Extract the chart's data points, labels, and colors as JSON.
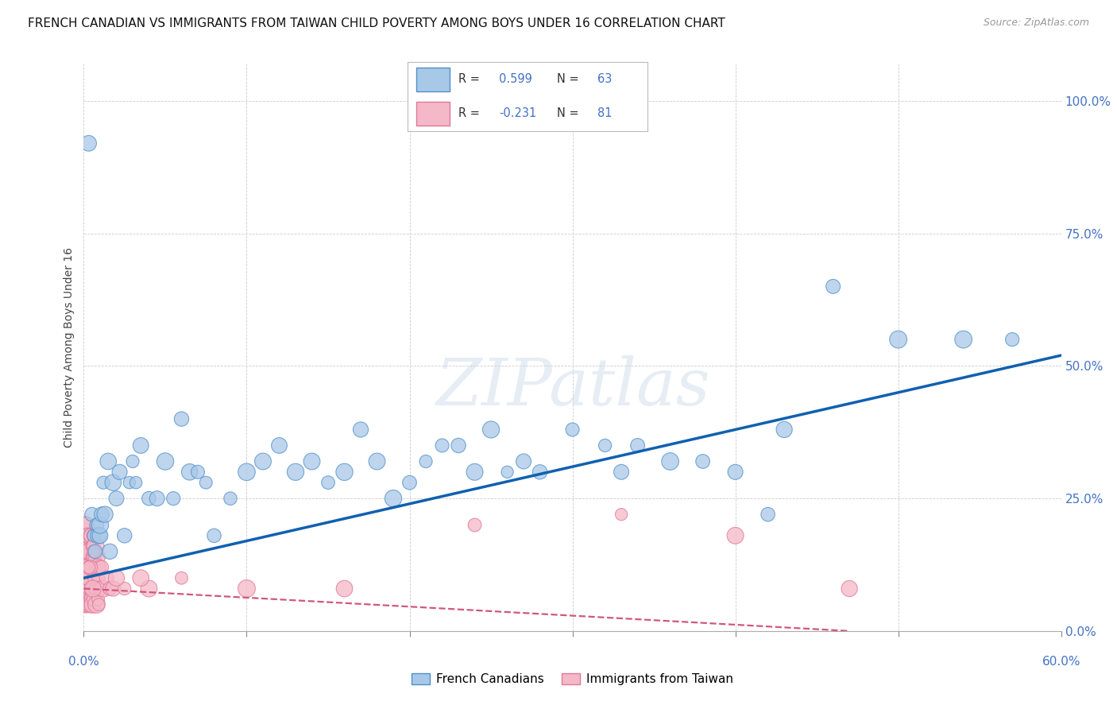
{
  "title": "FRENCH CANADIAN VS IMMIGRANTS FROM TAIWAN CHILD POVERTY AMONG BOYS UNDER 16 CORRELATION CHART",
  "source": "Source: ZipAtlas.com",
  "ylabel": "Child Poverty Among Boys Under 16",
  "ytick_values": [
    0,
    25,
    50,
    75,
    100
  ],
  "xlim": [
    0,
    60
  ],
  "ylim": [
    0,
    107
  ],
  "blue_series": {
    "name": "French Canadians",
    "R_label": "0.599",
    "N_label": "63",
    "face_color": "#a8c8e8",
    "edge_color": "#5090c8",
    "line_color": "#1060b0",
    "x": [
      0.3,
      0.5,
      0.6,
      0.7,
      0.8,
      0.9,
      1.0,
      1.0,
      1.1,
      1.2,
      1.3,
      1.5,
      1.6,
      1.8,
      2.0,
      2.2,
      2.5,
      2.8,
      3.0,
      3.2,
      3.5,
      4.0,
      4.5,
      5.0,
      5.5,
      6.0,
      6.5,
      7.0,
      7.5,
      8.0,
      9.0,
      10.0,
      11.0,
      12.0,
      13.0,
      14.0,
      15.0,
      16.0,
      17.0,
      18.0,
      19.0,
      20.0,
      21.0,
      22.0,
      23.0,
      24.0,
      25.0,
      26.0,
      27.0,
      28.0,
      30.0,
      32.0,
      34.0,
      36.0,
      38.0,
      40.0,
      43.0,
      46.0,
      50.0,
      54.0,
      57.0,
      33.0,
      42.0
    ],
    "y": [
      92,
      22,
      18,
      15,
      20,
      18,
      18,
      20,
      22,
      28,
      22,
      32,
      15,
      28,
      25,
      30,
      18,
      28,
      32,
      28,
      35,
      25,
      25,
      32,
      25,
      40,
      30,
      30,
      28,
      18,
      25,
      30,
      32,
      35,
      30,
      32,
      28,
      30,
      38,
      32,
      25,
      28,
      32,
      35,
      35,
      30,
      38,
      30,
      32,
      30,
      38,
      35,
      35,
      32,
      32,
      30,
      38,
      65,
      55,
      55,
      55,
      30,
      22
    ],
    "trend_x": [
      0,
      60
    ],
    "trend_y": [
      10,
      52
    ]
  },
  "pink_series": {
    "name": "Immigrants from Taiwan",
    "R_label": "-0.231",
    "N_label": "81",
    "face_color": "#f4b8c8",
    "edge_color": "#e07898",
    "line_color": "#d05878",
    "x": [
      0.02,
      0.03,
      0.04,
      0.05,
      0.05,
      0.06,
      0.07,
      0.07,
      0.08,
      0.08,
      0.09,
      0.09,
      0.1,
      0.1,
      0.1,
      0.12,
      0.12,
      0.13,
      0.15,
      0.15,
      0.15,
      0.17,
      0.18,
      0.2,
      0.2,
      0.22,
      0.25,
      0.25,
      0.28,
      0.3,
      0.3,
      0.32,
      0.35,
      0.35,
      0.38,
      0.4,
      0.4,
      0.42,
      0.45,
      0.45,
      0.5,
      0.5,
      0.5,
      0.55,
      0.55,
      0.6,
      0.62,
      0.65,
      0.65,
      0.7,
      0.72,
      0.75,
      0.78,
      0.8,
      0.82,
      0.85,
      0.88,
      0.9,
      0.92,
      0.95,
      1.0,
      1.1,
      1.2,
      1.4,
      1.6,
      1.8,
      2.5,
      4.0,
      6.0,
      10.0,
      16.0,
      24.0,
      33.0,
      40.0,
      47.0,
      2.0,
      3.5,
      0.6,
      0.4,
      0.3,
      0.55
    ],
    "y": [
      5,
      8,
      10,
      5,
      14,
      8,
      12,
      18,
      6,
      15,
      8,
      20,
      5,
      10,
      16,
      8,
      18,
      12,
      5,
      14,
      20,
      10,
      15,
      6,
      18,
      12,
      6,
      15,
      10,
      5,
      18,
      12,
      6,
      15,
      10,
      5,
      18,
      6,
      12,
      18,
      8,
      12,
      16,
      5,
      14,
      8,
      18,
      6,
      14,
      8,
      16,
      10,
      5,
      14,
      8,
      12,
      6,
      10,
      5,
      12,
      8,
      12,
      8,
      10,
      8,
      8,
      8,
      8,
      10,
      8,
      8,
      20,
      22,
      18,
      8,
      10,
      10,
      15,
      12,
      12,
      8
    ],
    "trend_x": [
      0,
      47
    ],
    "trend_y": [
      8,
      0
    ]
  },
  "watermark": "ZIPatlas",
  "bg_color": "#ffffff",
  "grid_color": "#cccccc",
  "label_color": "#4472c4",
  "value_color": "#4472c4",
  "text_color": "#333333",
  "title_fontsize": 11,
  "source_fontsize": 9,
  "tick_fontsize": 11,
  "legend_fontsize": 11
}
